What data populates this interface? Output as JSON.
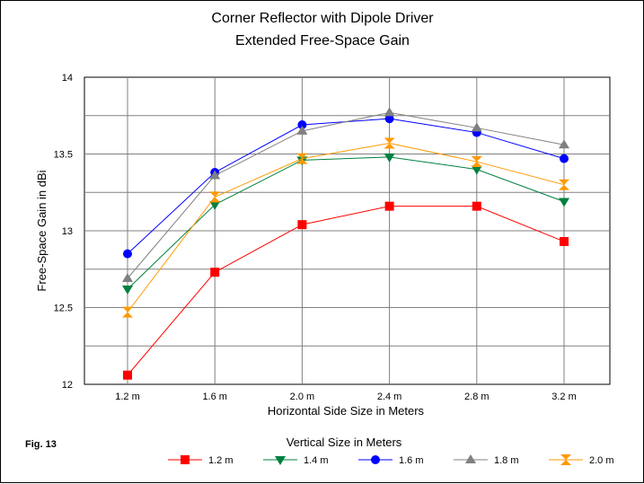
{
  "chart_data": {
    "type": "line",
    "title": [
      "Corner Reflector with Dipole Driver",
      "Extended Free-Space Gain"
    ],
    "xlabel": "Horizontal Side Size in Meters",
    "ylabel": "Free-Space Gain in dBi",
    "categories": [
      "1.2 m",
      "1.6 m",
      "2.0 m",
      "2.4 m",
      "2.8 m",
      "3.2 m"
    ],
    "ylim": [
      12,
      14
    ],
    "yticks": [
      "12",
      "12.5",
      "13",
      "13.5",
      "14"
    ],
    "grid": true,
    "legend": {
      "title": "Vertical Size in Meters",
      "placement": "bottom"
    },
    "series": [
      {
        "name": "1.2 m",
        "color": "#ff0000",
        "marker": "square",
        "values": [
          12.06,
          12.73,
          13.04,
          13.16,
          13.16,
          12.93
        ]
      },
      {
        "name": "1.4 m",
        "color": "#008040",
        "marker": "triangle-down",
        "values": [
          12.62,
          13.17,
          13.46,
          13.48,
          13.4,
          13.19
        ]
      },
      {
        "name": "1.6 m",
        "color": "#0000ff",
        "marker": "circle",
        "values": [
          12.85,
          13.38,
          13.69,
          13.73,
          13.64,
          13.47
        ]
      },
      {
        "name": "1.8 m",
        "color": "#808080",
        "marker": "triangle-up",
        "values": [
          12.69,
          13.36,
          13.65,
          13.77,
          13.67,
          13.56
        ]
      },
      {
        "name": "2.0 m",
        "color": "#ff9900",
        "marker": "hourglass",
        "values": [
          12.47,
          13.22,
          13.47,
          13.57,
          13.45,
          13.3
        ]
      }
    ],
    "annotation": "Fig. 13"
  }
}
